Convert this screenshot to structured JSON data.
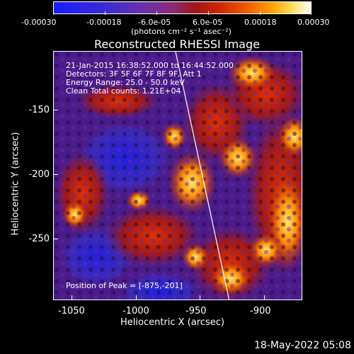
{
  "colorbar": {
    "ticks": [
      "-0.00030",
      "-0.00018",
      "-6.0e-05",
      "6.0e-05",
      "0.00018",
      "0.00030"
    ],
    "units": "(photons cm⁻² s⁻¹ asec⁻²)"
  },
  "plot": {
    "title": "Reconstructed RHESSI Image",
    "info": [
      "21-Jan-2015 16:38:52.000 to 16:44:52.000",
      "Detectors: 3F 5F 6F 7F 8F 9F, Att 1",
      "Energy Range: 25.0 - 50.0 keV",
      "Clean     Total counts: 1.21E+04"
    ],
    "peak": "Position of Peak = [-875,-201]",
    "xlabel": "Heliocentric X (arcsec)",
    "ylabel": "Heliocentric Y (arcsec)",
    "xticks": [
      "-1050",
      "-1000",
      "-950",
      "-900"
    ],
    "yticks": [
      "-150",
      "-200",
      "-250"
    ]
  },
  "footer": {
    "datestamp": "18-May-2022 05:08"
  }
}
